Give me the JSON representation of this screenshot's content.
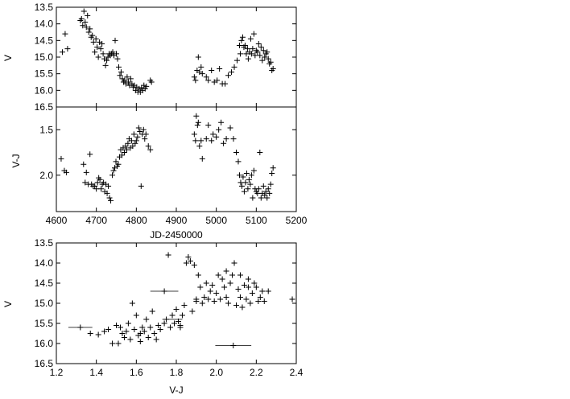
{
  "chart_data": [
    {
      "type": "scatter",
      "xlabel": "",
      "ylabel": "V",
      "xlim": [
        4600,
        5200
      ],
      "ylim": [
        16.5,
        13.5
      ],
      "y_inverted": true,
      "xticks": [
        4600,
        4700,
        4800,
        4900,
        5000,
        5100,
        5200
      ],
      "yticks": [
        {
          "v": 13.5,
          "label": "13.5"
        },
        {
          "v": 14.0,
          "label": "14.0"
        },
        {
          "v": 14.5,
          "label": "14.5"
        },
        {
          "v": 15.0,
          "label": "15.0"
        },
        {
          "v": 15.5,
          "label": "15.5"
        },
        {
          "v": 16.0,
          "label": "16.0"
        },
        {
          "v": 16.5,
          "label": "16.5"
        }
      ],
      "show_x_ticklabels": false,
      "marker": "plus",
      "points": [
        [
          4615,
          14.85
        ],
        [
          4622,
          14.3
        ],
        [
          4628,
          14.75
        ],
        [
          4660,
          13.9
        ],
        [
          4663,
          13.85
        ],
        [
          4666,
          14.05
        ],
        [
          4669,
          13.62
        ],
        [
          4672,
          13.95
        ],
        [
          4675,
          14.1
        ],
        [
          4678,
          13.75
        ],
        [
          4681,
          14.25
        ],
        [
          4684,
          14.15
        ],
        [
          4687,
          14.4
        ],
        [
          4690,
          14.35
        ],
        [
          4693,
          14.55
        ],
        [
          4696,
          14.85
        ],
        [
          4699,
          14.45
        ],
        [
          4702,
          14.7
        ],
        [
          4705,
          15.0
        ],
        [
          4708,
          14.55
        ],
        [
          4711,
          14.75
        ],
        [
          4714,
          14.6
        ],
        [
          4717,
          14.9
        ],
        [
          4720,
          15.05
        ],
        [
          4723,
          15.25
        ],
        [
          4726,
          15.1
        ],
        [
          4729,
          15.0
        ],
        [
          4732,
          14.9
        ],
        [
          4735,
          14.95
        ],
        [
          4738,
          14.9
        ],
        [
          4741,
          14.85
        ],
        [
          4744,
          14.95
        ],
        [
          4747,
          14.5
        ],
        [
          4750,
          14.9
        ],
        [
          4753,
          15.05
        ],
        [
          4756,
          15.3
        ],
        [
          4759,
          15.55
        ],
        [
          4762,
          15.45
        ],
        [
          4765,
          15.65
        ],
        [
          4768,
          15.75
        ],
        [
          4771,
          15.7
        ],
        [
          4774,
          15.8
        ],
        [
          4777,
          15.6
        ],
        [
          4780,
          15.75
        ],
        [
          4783,
          15.85
        ],
        [
          4786,
          15.65
        ],
        [
          4789,
          15.8
        ],
        [
          4792,
          15.9
        ],
        [
          4795,
          15.85
        ],
        [
          4798,
          16.0
        ],
        [
          4801,
          15.9
        ],
        [
          4804,
          16.05
        ],
        [
          4807,
          15.95
        ],
        [
          4810,
          16.05
        ],
        [
          4813,
          15.92
        ],
        [
          4816,
          16.0
        ],
        [
          4819,
          15.85
        ],
        [
          4822,
          15.95
        ],
        [
          4825,
          15.88
        ],
        [
          4835,
          15.7
        ],
        [
          4838,
          15.75
        ],
        [
          4945,
          15.6
        ],
        [
          4948,
          15.7
        ],
        [
          4952,
          15.4
        ],
        [
          4955,
          15.0
        ],
        [
          4958,
          15.45
        ],
        [
          4962,
          15.3
        ],
        [
          4965,
          15.5
        ],
        [
          4975,
          15.6
        ],
        [
          4980,
          15.7
        ],
        [
          4988,
          15.4
        ],
        [
          4995,
          15.75
        ],
        [
          5002,
          15.7
        ],
        [
          5008,
          15.35
        ],
        [
          5015,
          15.8
        ],
        [
          5022,
          15.8
        ],
        [
          5030,
          15.55
        ],
        [
          5038,
          15.45
        ],
        [
          5045,
          15.3
        ],
        [
          5052,
          15.1
        ],
        [
          5058,
          14.65
        ],
        [
          5060,
          14.9
        ],
        [
          5063,
          14.5
        ],
        [
          5066,
          14.4
        ],
        [
          5069,
          14.7
        ],
        [
          5072,
          14.65
        ],
        [
          5075,
          14.9
        ],
        [
          5078,
          14.75
        ],
        [
          5080,
          15.05
        ],
        [
          5083,
          14.85
        ],
        [
          5086,
          14.45
        ],
        [
          5088,
          14.9
        ],
        [
          5091,
          14.75
        ],
        [
          5094,
          14.3
        ],
        [
          5097,
          14.95
        ],
        [
          5100,
          14.8
        ],
        [
          5103,
          14.85
        ],
        [
          5106,
          14.6
        ],
        [
          5109,
          14.95
        ],
        [
          5112,
          14.7
        ],
        [
          5115,
          15.1
        ],
        [
          5118,
          14.8
        ],
        [
          5121,
          15.0
        ],
        [
          5124,
          14.9
        ],
        [
          5127,
          14.85
        ],
        [
          5130,
          15.05
        ],
        [
          5133,
          15.2
        ],
        [
          5136,
          15.15
        ],
        [
          5139,
          15.4
        ],
        [
          5142,
          15.35
        ]
      ]
    },
    {
      "type": "scatter",
      "xlabel": "JD-2450000",
      "ylabel": "V-J",
      "xlim": [
        4600,
        5200
      ],
      "ylim": [
        2.4,
        1.25
      ],
      "y_inverted": true,
      "xticks": [
        4600,
        4700,
        4800,
        4900,
        5000,
        5100,
        5200
      ],
      "yticks": [
        {
          "v": 1.5,
          "label": "1.5"
        },
        {
          "v": 2.0,
          "label": "2.0"
        }
      ],
      "show_x_ticklabels": true,
      "marker": "plus",
      "points": [
        [
          4612,
          1.82
        ],
        [
          4620,
          1.95
        ],
        [
          4625,
          1.97
        ],
        [
          4668,
          1.88
        ],
        [
          4672,
          2.08
        ],
        [
          4675,
          1.97
        ],
        [
          4680,
          2.1
        ],
        [
          4684,
          1.77
        ],
        [
          4688,
          2.1
        ],
        [
          4692,
          2.12
        ],
        [
          4696,
          2.12
        ],
        [
          4700,
          2.15
        ],
        [
          4703,
          2.08
        ],
        [
          4706,
          2.03
        ],
        [
          4709,
          2.05
        ],
        [
          4712,
          2.15
        ],
        [
          4715,
          2.1
        ],
        [
          4718,
          2.08
        ],
        [
          4721,
          2.18
        ],
        [
          4724,
          2.1
        ],
        [
          4727,
          2.2
        ],
        [
          4730,
          2.12
        ],
        [
          4733,
          2.25
        ],
        [
          4736,
          2.28
        ],
        [
          4740,
          2.0
        ],
        [
          4743,
          1.95
        ],
        [
          4746,
          1.92
        ],
        [
          4749,
          1.85
        ],
        [
          4752,
          1.9
        ],
        [
          4755,
          1.88
        ],
        [
          4758,
          1.8
        ],
        [
          4761,
          1.72
        ],
        [
          4764,
          1.78
        ],
        [
          4767,
          1.7
        ],
        [
          4770,
          1.75
        ],
        [
          4773,
          1.68
        ],
        [
          4776,
          1.72
        ],
        [
          4779,
          1.65
        ],
        [
          4782,
          1.6
        ],
        [
          4785,
          1.7
        ],
        [
          4788,
          1.62
        ],
        [
          4791,
          1.68
        ],
        [
          4794,
          1.55
        ],
        [
          4797,
          1.65
        ],
        [
          4800,
          1.62
        ],
        [
          4803,
          1.58
        ],
        [
          4806,
          1.48
        ],
        [
          4809,
          1.52
        ],
        [
          4812,
          2.12
        ],
        [
          4815,
          1.55
        ],
        [
          4818,
          1.5
        ],
        [
          4821,
          1.6
        ],
        [
          4824,
          1.55
        ],
        [
          4830,
          1.68
        ],
        [
          4835,
          1.72
        ],
        [
          4945,
          1.55
        ],
        [
          4948,
          1.62
        ],
        [
          4950,
          1.35
        ],
        [
          4953,
          1.45
        ],
        [
          4955,
          1.42
        ],
        [
          4958,
          1.68
        ],
        [
          4962,
          1.62
        ],
        [
          4965,
          1.82
        ],
        [
          4975,
          1.6
        ],
        [
          4980,
          1.45
        ],
        [
          4988,
          1.62
        ],
        [
          4992,
          1.55
        ],
        [
          5000,
          1.58
        ],
        [
          5006,
          1.5
        ],
        [
          5012,
          1.42
        ],
        [
          5018,
          1.65
        ],
        [
          5025,
          1.6
        ],
        [
          5035,
          1.48
        ],
        [
          5043,
          1.6
        ],
        [
          5050,
          1.75
        ],
        [
          5055,
          1.85
        ],
        [
          5058,
          2.0
        ],
        [
          5061,
          2.08
        ],
        [
          5064,
          2.12
        ],
        [
          5067,
          2.02
        ],
        [
          5070,
          2.18
        ],
        [
          5073,
          2.08
        ],
        [
          5076,
          1.98
        ],
        [
          5079,
          2.15
        ],
        [
          5082,
          2.05
        ],
        [
          5085,
          2.1
        ],
        [
          5088,
          2.0
        ],
        [
          5091,
          2.25
        ],
        [
          5094,
          1.95
        ],
        [
          5097,
          2.15
        ],
        [
          5100,
          2.18
        ],
        [
          5103,
          2.2
        ],
        [
          5106,
          2.15
        ],
        [
          5109,
          1.75
        ],
        [
          5112,
          2.25
        ],
        [
          5115,
          2.2
        ],
        [
          5118,
          2.12
        ],
        [
          5121,
          2.22
        ],
        [
          5124,
          2.18
        ],
        [
          5127,
          2.25
        ],
        [
          5130,
          2.15
        ],
        [
          5133,
          2.2
        ],
        [
          5136,
          2.1
        ],
        [
          5139,
          1.98
        ],
        [
          5142,
          1.92
        ]
      ]
    },
    {
      "type": "scatter",
      "xlabel": "V-J",
      "ylabel": "V",
      "xlim": [
        1.2,
        2.4
      ],
      "ylim": [
        16.5,
        13.5
      ],
      "y_inverted": true,
      "xticks": [
        {
          "v": 1.2,
          "label": "1.2"
        },
        {
          "v": 1.4,
          "label": "1.4"
        },
        {
          "v": 1.6,
          "label": "1.6"
        },
        {
          "v": 1.8,
          "label": "1.8"
        },
        {
          "v": 2.0,
          "label": "2.0"
        },
        {
          "v": 2.2,
          "label": "2.2"
        },
        {
          "v": 2.4,
          "label": "2.4"
        }
      ],
      "yticks": [
        {
          "v": 13.5,
          "label": "13.5"
        },
        {
          "v": 14.0,
          "label": "14.0"
        },
        {
          "v": 14.5,
          "label": "14.5"
        },
        {
          "v": 15.0,
          "label": "15.0"
        },
        {
          "v": 15.5,
          "label": "15.5"
        },
        {
          "v": 16.0,
          "label": "16.0"
        },
        {
          "v": 16.5,
          "label": "16.5"
        }
      ],
      "show_x_ticklabels": true,
      "marker": "plus",
      "points": [
        [
          1.32,
          15.6
        ],
        [
          1.37,
          15.75
        ],
        [
          1.41,
          15.78
        ],
        [
          1.44,
          15.7
        ],
        [
          1.46,
          15.65
        ],
        [
          1.48,
          16.0
        ],
        [
          1.5,
          15.55
        ],
        [
          1.51,
          16.0
        ],
        [
          1.52,
          15.6
        ],
        [
          1.53,
          15.75
        ],
        [
          1.54,
          15.85
        ],
        [
          1.55,
          15.7
        ],
        [
          1.56,
          15.5
        ],
        [
          1.57,
          15.9
        ],
        [
          1.58,
          15.0
        ],
        [
          1.59,
          15.65
        ],
        [
          1.6,
          15.3
        ],
        [
          1.61,
          15.8
        ],
        [
          1.62,
          15.95
        ],
        [
          1.63,
          15.6
        ],
        [
          1.64,
          15.7
        ],
        [
          1.65,
          15.4
        ],
        [
          1.66,
          15.85
        ],
        [
          1.67,
          15.6
        ],
        [
          1.68,
          15.2
        ],
        [
          1.69,
          15.75
        ],
        [
          1.7,
          15.9
        ],
        [
          1.71,
          15.55
        ],
        [
          1.72,
          15.65
        ],
        [
          1.74,
          14.7
        ],
        [
          1.75,
          15.4
        ],
        [
          1.76,
          13.8
        ],
        [
          1.77,
          15.6
        ],
        [
          1.78,
          15.3
        ],
        [
          1.79,
          15.5
        ],
        [
          1.8,
          15.15
        ],
        [
          1.81,
          15.45
        ],
        [
          1.82,
          15.6
        ],
        [
          1.83,
          15.3
        ],
        [
          1.84,
          15.05
        ],
        [
          1.85,
          14.0
        ],
        [
          1.86,
          13.85
        ],
        [
          1.87,
          13.95
        ],
        [
          1.88,
          15.2
        ],
        [
          1.89,
          14.05
        ],
        [
          1.9,
          14.95
        ],
        [
          1.91,
          14.3
        ],
        [
          1.92,
          14.6
        ],
        [
          1.93,
          15.0
        ],
        [
          1.94,
          14.85
        ],
        [
          1.95,
          14.5
        ],
        [
          1.96,
          14.9
        ],
        [
          1.97,
          14.7
        ],
        [
          1.98,
          14.55
        ],
        [
          1.99,
          14.95
        ],
        [
          2.0,
          14.75
        ],
        [
          2.01,
          14.3
        ],
        [
          2.02,
          14.9
        ],
        [
          2.03,
          14.4
        ],
        [
          2.04,
          14.6
        ],
        [
          2.05,
          14.85
        ],
        [
          2.06,
          15.0
        ],
        [
          2.07,
          14.5
        ],
        [
          2.08,
          14.3
        ],
        [
          2.085,
          16.05
        ],
        [
          2.09,
          14.0
        ],
        [
          2.1,
          15.05
        ],
        [
          2.11,
          14.65
        ],
        [
          2.12,
          14.85
        ],
        [
          2.13,
          15.1
        ],
        [
          2.14,
          14.55
        ],
        [
          2.15,
          14.9
        ],
        [
          2.16,
          14.4
        ],
        [
          2.17,
          15.0
        ],
        [
          2.18,
          14.75
        ],
        [
          2.19,
          14.5
        ],
        [
          2.2,
          14.6
        ],
        [
          2.21,
          14.95
        ],
        [
          2.22,
          14.85
        ],
        [
          2.23,
          14.7
        ],
        [
          2.24,
          14.95
        ],
        [
          2.26,
          14.7
        ],
        [
          2.38,
          14.9
        ],
        [
          1.62,
          15.75
        ],
        [
          1.74,
          15.5
        ],
        [
          1.82,
          15.55
        ],
        [
          1.9,
          14.9
        ],
        [
          2.05,
          14.2
        ],
        [
          2.12,
          14.3
        ],
        [
          2.16,
          14.6
        ]
      ],
      "error_bars": [
        {
          "x": 1.32,
          "y": 15.6,
          "xerr": 0.06
        },
        {
          "x": 1.74,
          "y": 14.7,
          "xerr": 0.07
        },
        {
          "x": 1.78,
          "y": 15.4,
          "xerr": 0.05
        },
        {
          "x": 2.085,
          "y": 16.05,
          "xerr": 0.09
        }
      ]
    }
  ]
}
